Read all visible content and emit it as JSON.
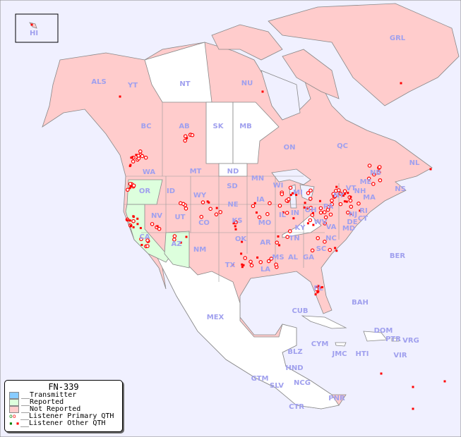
{
  "legend": {
    "title": "FN-339",
    "items": [
      {
        "label": "__Transmitter",
        "color": "#88ccff"
      },
      {
        "label": "__Reported",
        "color": "#ddffdd"
      },
      {
        "label": "__Not Reported",
        "color": "#ffcccc"
      },
      {
        "label": "__Listener Primary QTH",
        "symbol": "circle"
      },
      {
        "label": "__Listener Other QTH",
        "symbol": "square"
      }
    ]
  },
  "colors": {
    "ocean": "#f0f0ff",
    "not_reported": "#ffcccc",
    "reported": "#ddffdd",
    "no_data": "#ffffff",
    "marker": "#ff0000",
    "label": "#a0a0ee",
    "border": "#888888"
  },
  "regions": {
    "reported": [
      "OR",
      "CA",
      "AZ"
    ],
    "no_data": [
      "NT",
      "SK",
      "MB",
      "ND",
      "KY",
      "MEX",
      "BLZ",
      "GTM",
      "HND",
      "SLV",
      "NCG",
      "CTR",
      "PNR",
      "CUB",
      "BAH",
      "JMC",
      "HTI",
      "DOM",
      "CYM",
      "BER",
      "VRG",
      "VIR",
      "PTR"
    ],
    "labels": [
      "HI",
      "ALS",
      "YT",
      "NT",
      "NU",
      "GRL",
      "BC",
      "AB",
      "SK",
      "MB",
      "ON",
      "QC",
      "NL",
      "NB",
      "NS",
      "WA",
      "OR",
      "ID",
      "MT",
      "ND",
      "MN",
      "WI",
      "MI",
      "SD",
      "WY",
      "NE",
      "IA",
      "IL",
      "IN",
      "OH",
      "PA",
      "NY",
      "VT",
      "NH",
      "ME",
      "MA",
      "RI",
      "CT",
      "NJ",
      "DE",
      "MD",
      "NV",
      "UT",
      "CO",
      "KS",
      "MO",
      "KY",
      "WV",
      "VA",
      "CA",
      "AZ",
      "NM",
      "OK",
      "AR",
      "TN",
      "NC",
      "SC",
      "MS",
      "AL",
      "GA",
      "TX",
      "LA",
      "FL",
      "MEX",
      "CUB",
      "BAH",
      "BER",
      "DOM",
      "PTR",
      "VRG",
      "CYM",
      "JMC",
      "HTI",
      "VIR",
      "BLZ",
      "GTM",
      "HND",
      "SLV",
      "NCG",
      "CTR",
      "PNR"
    ]
  }
}
